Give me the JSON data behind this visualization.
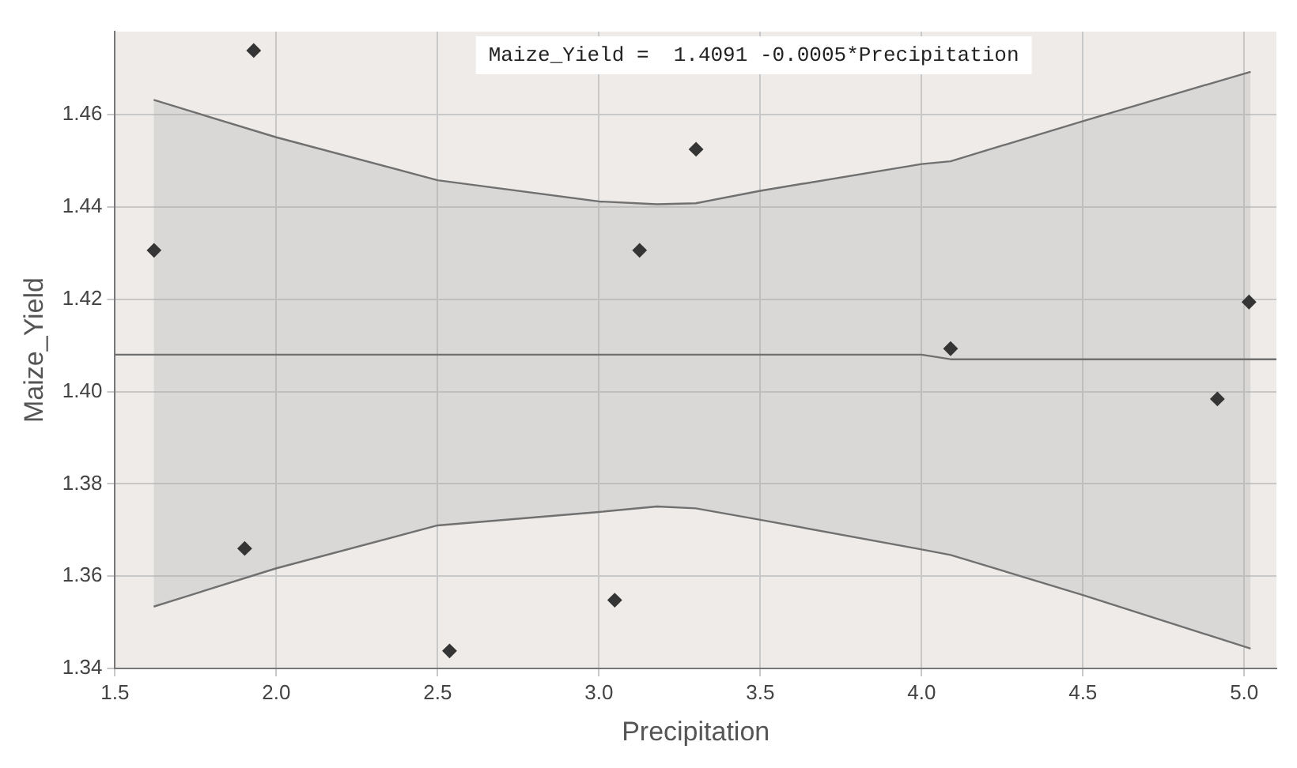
{
  "chart_data": {
    "type": "scatter",
    "xlabel": "Precipitation",
    "ylabel": "Maize_Yield",
    "annotations": [
      "Maize_Yield =  1.4091 -0.0005*Precipitation"
    ],
    "xlim": [
      1.5,
      5.1
    ],
    "ylim": [
      1.34,
      1.478
    ],
    "xticks": [
      1.5,
      {
        "value": 2,
        "label": "2.0"
      },
      2.5,
      {
        "value": 3,
        "label": "3.0"
      },
      3.5,
      {
        "value": 4,
        "label": "4.0"
      },
      4.5,
      {
        "value": 5,
        "label": "5.0"
      }
    ],
    "yticks": [
      1.34,
      1.36,
      1.38,
      {
        "value": 1.4,
        "label": "1.40"
      },
      1.42,
      1.44,
      1.46
    ],
    "grid": true,
    "marker": "diamond",
    "series": [
      {
        "type": "line",
        "marker": "none",
        "color": "#707070",
        "x": [
          1.62,
          2.0,
          2.5,
          3.0,
          3.18,
          3.3,
          3.5,
          4.0,
          4.09,
          4.5,
          5.02
        ],
        "values": [
          1.4632,
          1.4551,
          1.4458,
          1.4412,
          1.4406,
          1.4408,
          1.4435,
          1.4493,
          1.4499,
          1.4586,
          1.4693
        ]
      },
      {
        "type": "line",
        "marker": "none",
        "color": "#707070",
        "x": [
          1.62,
          2.0,
          2.5,
          3.0,
          3.18,
          3.3,
          3.5,
          4.0,
          4.09,
          4.5,
          5.02
        ],
        "values": [
          1.3534,
          1.3617,
          1.371,
          1.3739,
          1.3751,
          1.3747,
          1.3722,
          1.3658,
          1.3646,
          1.3559,
          1.3443
        ]
      },
      {
        "type": "line",
        "marker": "none",
        "color": "#707070",
        "x": [
          1.5,
          1.62,
          2.0,
          2.5,
          3.0,
          3.18,
          3.3,
          3.5,
          4.0,
          4.09,
          4.5,
          5.02,
          5.1
        ],
        "values": [
          1.408,
          1.408,
          1.408,
          1.408,
          1.408,
          1.408,
          1.408,
          1.408,
          1.408,
          1.407,
          1.407,
          1.407,
          1.407
        ],
        "lower": [
          null,
          1.3534,
          1.3617,
          1.371,
          1.3739,
          1.3751,
          1.3747,
          1.3722,
          1.3658,
          1.3646,
          1.3559,
          1.3443,
          null
        ],
        "upper": [
          null,
          1.4632,
          1.4551,
          1.4458,
          1.4412,
          1.4406,
          1.4408,
          1.4435,
          1.4493,
          1.4499,
          1.4586,
          1.4693,
          null
        ]
      },
      {
        "color": "#353535",
        "x": [
          1.621,
          1.93,
          1.902,
          2.537,
          3.126,
          3.049,
          3.301,
          4.09,
          4.917,
          5.015
        ],
        "values": [
          1.4306,
          1.4739,
          1.366,
          1.3438,
          1.4306,
          1.3548,
          1.4525,
          1.4093,
          1.3984,
          1.4194
        ]
      }
    ]
  }
}
